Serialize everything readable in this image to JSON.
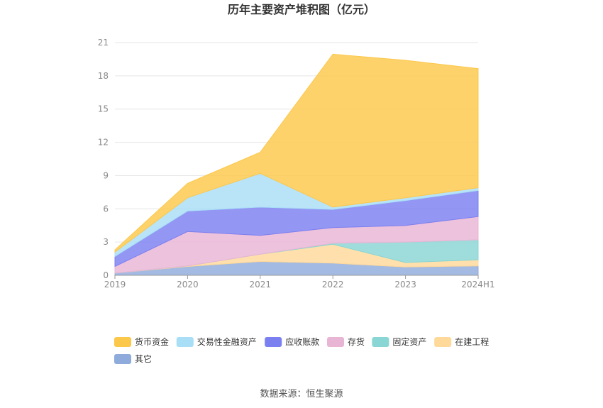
{
  "chart_data": {
    "type": "area",
    "title": "历年主要资产堆积图（亿元）",
    "categories": [
      "2019",
      "2020",
      "2021",
      "2022",
      "2023",
      "2024H1"
    ],
    "ylim": [
      0,
      21
    ],
    "yticks": [
      0,
      3,
      6,
      9,
      12,
      15,
      18,
      21
    ],
    "grid": true,
    "legend_position": "bottom-left",
    "stacked": true,
    "series": [
      {
        "name": "其它",
        "color": "#8fabdc",
        "values": [
          0.2,
          0.8,
          1.25,
          1.1,
          0.75,
          0.85
        ]
      },
      {
        "name": "在建工程",
        "color": "#ffd99a",
        "values": [
          0.0,
          0.05,
          0.65,
          1.7,
          0.4,
          0.55
        ]
      },
      {
        "name": "固定资产",
        "color": "#8ad6d4",
        "values": [
          0.0,
          0.0,
          0.0,
          0.1,
          1.85,
          1.8
        ]
      },
      {
        "name": "存货",
        "color": "#e9b5d5",
        "values": [
          0.6,
          3.1,
          1.7,
          1.4,
          1.5,
          2.1
        ]
      },
      {
        "name": "应收账款",
        "color": "#7b80f0",
        "values": [
          0.9,
          1.85,
          2.55,
          1.65,
          2.25,
          2.35
        ]
      },
      {
        "name": "交易性金融资产",
        "color": "#a9def7",
        "values": [
          0.4,
          1.2,
          3.05,
          0.2,
          0.25,
          0.25
        ]
      },
      {
        "name": "货币资金",
        "color": "#fcc84b",
        "values": [
          0.2,
          1.3,
          1.9,
          13.8,
          12.4,
          10.75
        ]
      }
    ],
    "legend_order": [
      "货币资金",
      "交易性金融资产",
      "应收账款",
      "存货",
      "固定资产",
      "在建工程",
      "其它"
    ]
  },
  "source_text": "数据来源：恒生聚源"
}
